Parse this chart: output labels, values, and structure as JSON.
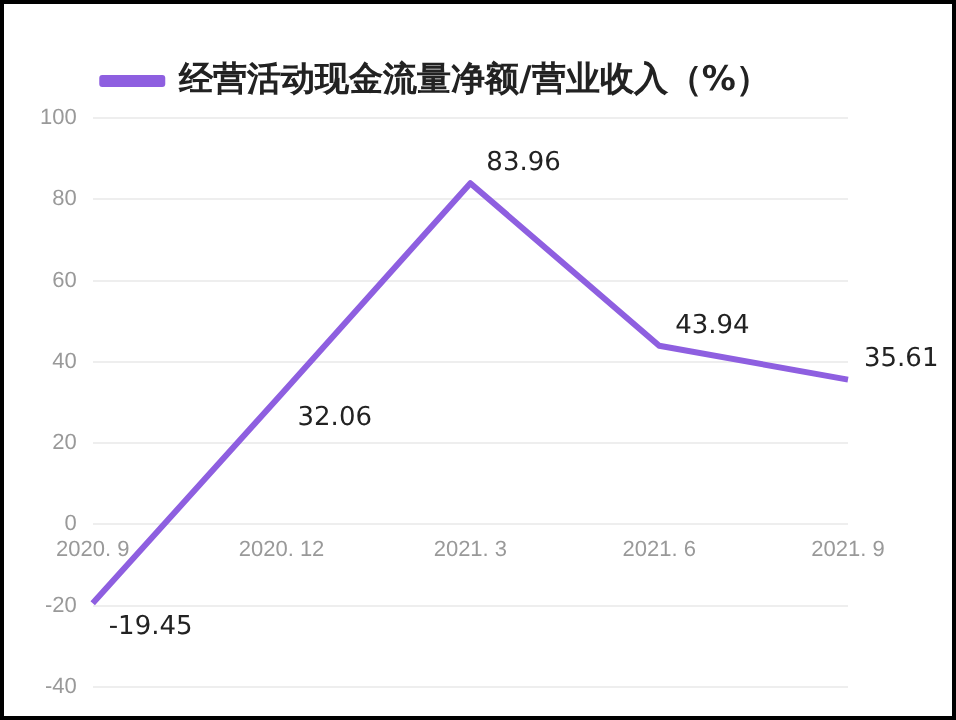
{
  "chart_data": {
    "type": "line",
    "categories": [
      "2020. 9",
      "2020. 12",
      "2021. 3",
      "2021. 6",
      "2021. 9"
    ],
    "series": [
      {
        "name": "经营活动现金流量净额/营业收入（%）",
        "color": "#8e5fe0",
        "values": [
          -19.45,
          32.06,
          83.96,
          43.94,
          35.61
        ]
      }
    ],
    "ylim": [
      -40,
      100
    ],
    "yticks": [
      -40,
      -20,
      0,
      20,
      40,
      60,
      80,
      100
    ],
    "grid": "y",
    "legend": "top",
    "marker": "none",
    "line_style": "solid",
    "data_labels": true
  }
}
